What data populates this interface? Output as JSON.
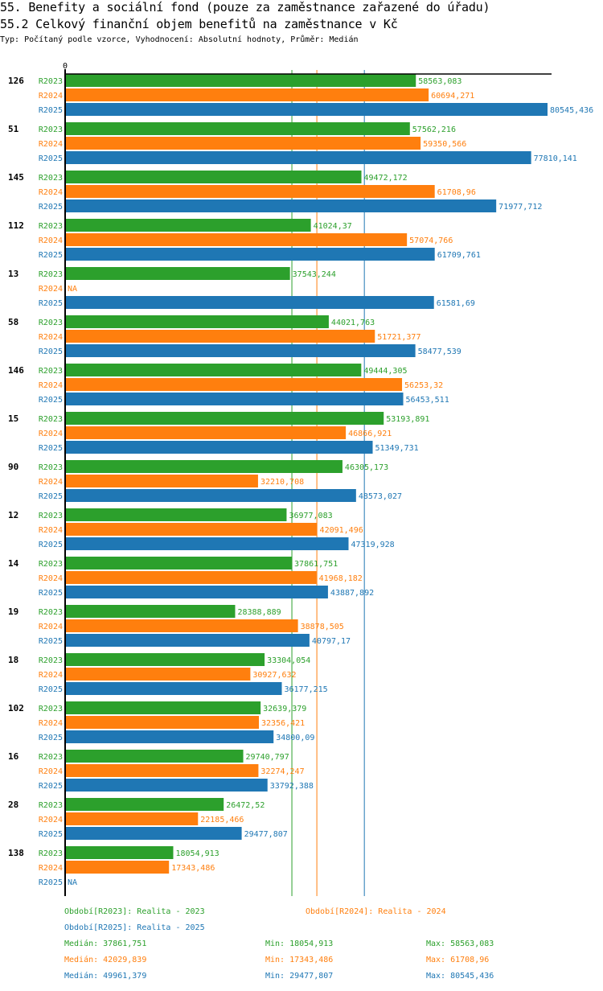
{
  "header": {
    "title": "55. Benefity a sociální fond (pouze za zaměstnance zařazené do úřadu)",
    "subtitle": "55.2 Celkový finanční objem benefitů na zaměstnance v Kč",
    "meta": "Typ: Počítaný podle vzorce, Vyhodnocení: Absolutní hodnoty, Průměr: Medián"
  },
  "chart_data": {
    "type": "bar",
    "orientation": "horizontal",
    "title": "55.2 Celkový finanční objem benefitů na zaměstnance v Kč",
    "xlabel": "",
    "ylabel": "",
    "x_axis_origin_label": "0",
    "xlim": [
      0,
      80545.436
    ],
    "grid": false,
    "categories": [
      "126",
      "51",
      "145",
      "112",
      "13",
      "58",
      "146",
      "15",
      "90",
      "12",
      "14",
      "19",
      "18",
      "102",
      "16",
      "28",
      "138"
    ],
    "series": [
      {
        "name": "R2023",
        "color": "#2ca02c",
        "values": [
          58563.083,
          57562.216,
          49472.172,
          41024.37,
          37543.244,
          44021.763,
          49444.305,
          53193.891,
          46305.173,
          36977.083,
          37861.751,
          28388.889,
          33304.054,
          32639.379,
          29740.797,
          26472.52,
          18054.913
        ],
        "labels": [
          "58563,083",
          "57562,216",
          "49472,172",
          "41024,37",
          "37543,244",
          "44021,763",
          "49444,305",
          "53193,891",
          "46305,173",
          "36977,083",
          "37861,751",
          "28388,889",
          "33304,054",
          "32639,379",
          "29740,797",
          "26472,52",
          "18054,913"
        ]
      },
      {
        "name": "R2024",
        "color": "#ff7f0e",
        "values": [
          60694.271,
          59350.566,
          61708.96,
          57074.766,
          null,
          51721.377,
          56253.32,
          46866.921,
          32210.708,
          42091.496,
          41968.182,
          38878.505,
          30927.632,
          32356.421,
          32274.247,
          22185.466,
          17343.486
        ],
        "labels": [
          "60694,271",
          "59350,566",
          "61708,96",
          "57074,766",
          "NA",
          "51721,377",
          "56253,32",
          "46866,921",
          "32210,708",
          "42091,496",
          "41968,182",
          "38878,505",
          "30927,632",
          "32356,421",
          "32274,247",
          "22185,466",
          "17343,486"
        ]
      },
      {
        "name": "R2025",
        "color": "#1f77b4",
        "values": [
          80545.436,
          77810.141,
          71977.712,
          61709.761,
          61581.69,
          58477.539,
          56453.511,
          51349.731,
          48573.027,
          47319.928,
          43887.892,
          40797.17,
          36177.215,
          34800.09,
          33792.388,
          29477.807,
          null
        ],
        "labels": [
          "80545,436",
          "77810,141",
          "71977,712",
          "61709,761",
          "61581,69",
          "58477,539",
          "56453,511",
          "51349,731",
          "48573,027",
          "47319,928",
          "43887,892",
          "40797,17",
          "36177,215",
          "34800,09",
          "33792,388",
          "29477,807",
          "NA"
        ]
      }
    ],
    "reference_lines": [
      {
        "series": "R2023",
        "type": "median",
        "value": 37861.751
      },
      {
        "series": "R2024",
        "type": "median",
        "value": 42029.839
      },
      {
        "series": "R2025",
        "type": "median",
        "value": 49961.379
      }
    ],
    "legend": {
      "placement": "bottom",
      "entries": [
        {
          "series": "R2023",
          "text": "Období[R2023]: Realita - 2023"
        },
        {
          "series": "R2024",
          "text": "Období[R2024]: Realita - 2024"
        },
        {
          "series": "R2025",
          "text": "Období[R2025]: Realita - 2025"
        }
      ]
    },
    "stats": [
      {
        "series": "R2023",
        "median": "Medián: 37861,751",
        "min": "Min: 18054,913",
        "max": "Max: 58563,083"
      },
      {
        "series": "R2024",
        "median": "Medián: 42029,839",
        "min": "Min: 17343,486",
        "max": "Max: 61708,96"
      },
      {
        "series": "R2025",
        "median": "Medián: 49961,379",
        "min": "Min: 29477,807",
        "max": "Max: 80545,436"
      }
    ]
  }
}
